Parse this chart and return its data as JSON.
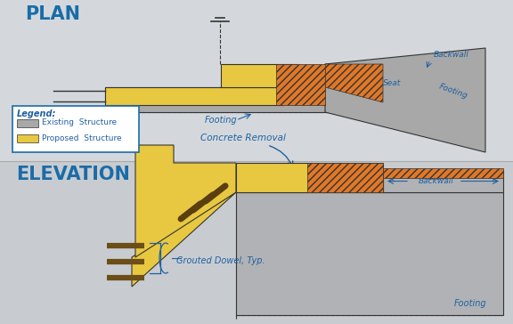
{
  "bg_color": "#d4d8dc",
  "plan_section_bg": "#d4d8dc",
  "elev_section_bg": "#c8ccd0",
  "plan_label": "PLAN",
  "elevation_label": "ELEVATION",
  "label_color": "#1a6ca8",
  "line_color": "#333333",
  "yellow_color": "#e8c840",
  "gray_color": "#a8a8a8",
  "gray_dark": "#909090",
  "orange_hatch_color": "#e05010",
  "blue_annotation": "#2060a0",
  "legend_border": "#1a6ca8",
  "concrete_removal_text": "Concrete Removal",
  "footing_text": "Footing",
  "backwall_text": "Backwall",
  "seat_text": "Seat",
  "grouted_dowel_text": "Grouted Dowel, Typ.",
  "legend_title": "Legend:",
  "legend_existing": "Existing  Structure",
  "legend_proposed": "Proposed  Structure"
}
